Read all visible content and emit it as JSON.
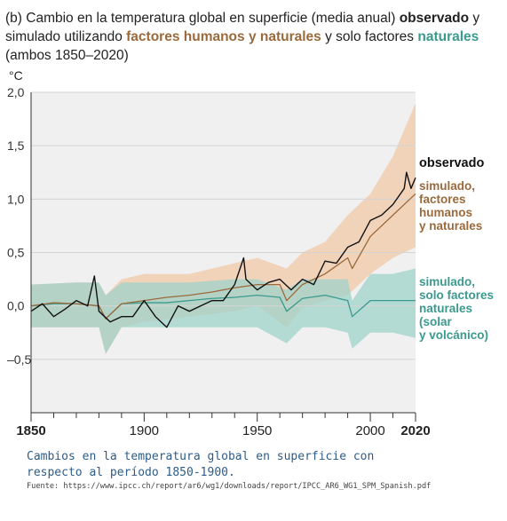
{
  "title": {
    "prefix": "(b) Cambio en la temperatura global en superficie (media anual) ",
    "observed": "observado",
    "middle1": " y simulado utilizando ",
    "human": "factores humanos y naturales",
    "middle2": "  y solo factores ",
    "natural": "naturales",
    "suffix": " (ambos 1850–2020)"
  },
  "unit": "°C",
  "labels": {
    "observed": "observado",
    "human": "simulado,\nfactores\nhumanos\ny naturales",
    "natural": "simulado,\nsolo factores\nnaturales\n(solar\ny volcánico)"
  },
  "caption": "Cambios en la temperatura global en superficie con respecto al período 1850-1900.",
  "source": "Fuente: https://www.ipcc.ch/report/ar6/wg1/downloads/report/IPCC_AR6_WG1_SPM_Spanish.pdf",
  "colors": {
    "observed": "#111111",
    "human": "#9a6a3c",
    "human_band": "#f2c9a8",
    "natural": "#3b9a8e",
    "natural_band": "#9fd3c9",
    "plot_bg": "#f0f0f0"
  },
  "chart_data": {
    "type": "line",
    "xlim": [
      1850,
      2020
    ],
    "ylim": [
      -1.0,
      2.0
    ],
    "x_ticks": [
      1850,
      1900,
      1950,
      2000,
      2020
    ],
    "x_tick_labels": [
      "1850",
      "1900",
      "1950",
      "2000",
      "2020"
    ],
    "y_ticks": [
      2.0,
      1.5,
      1.0,
      0.5,
      0.0,
      -0.5
    ],
    "y_tick_labels": [
      "2,0",
      "1,5",
      "1,0",
      "0,5",
      "0,0",
      "–0,5"
    ],
    "series": [
      {
        "name": "observado",
        "type": "line",
        "x": [
          1850,
          1855,
          1860,
          1865,
          1870,
          1875,
          1878,
          1880,
          1885,
          1890,
          1895,
          1900,
          1905,
          1910,
          1915,
          1920,
          1925,
          1930,
          1935,
          1940,
          1944,
          1945,
          1950,
          1955,
          1960,
          1965,
          1970,
          1975,
          1980,
          1985,
          1990,
          1995,
          2000,
          2005,
          2010,
          2015,
          2016,
          2018,
          2020
        ],
        "y": [
          -0.05,
          0.02,
          -0.1,
          -0.03,
          0.05,
          0.0,
          0.28,
          -0.05,
          -0.15,
          -0.1,
          -0.1,
          0.05,
          -0.1,
          -0.2,
          0.0,
          -0.05,
          0.0,
          0.05,
          0.05,
          0.2,
          0.45,
          0.25,
          0.15,
          0.22,
          0.25,
          0.15,
          0.25,
          0.2,
          0.42,
          0.4,
          0.55,
          0.6,
          0.8,
          0.85,
          0.95,
          1.1,
          1.25,
          1.1,
          1.2
        ]
      },
      {
        "name": "simulado, factores humanos y naturales",
        "type": "line",
        "x": [
          1850,
          1860,
          1870,
          1880,
          1883,
          1890,
          1900,
          1910,
          1920,
          1930,
          1940,
          1950,
          1960,
          1963,
          1970,
          1980,
          1990,
          1992,
          2000,
          2010,
          2020
        ],
        "y": [
          0.0,
          0.03,
          0.02,
          0.0,
          -0.12,
          0.02,
          0.05,
          0.08,
          0.1,
          0.13,
          0.17,
          0.2,
          0.2,
          0.05,
          0.2,
          0.3,
          0.45,
          0.35,
          0.65,
          0.85,
          1.05
        ]
      },
      {
        "name": "simulado, solo factores naturales",
        "type": "line",
        "x": [
          1850,
          1860,
          1870,
          1880,
          1883,
          1890,
          1900,
          1910,
          1920,
          1930,
          1940,
          1950,
          1960,
          1963,
          1970,
          1980,
          1990,
          1992,
          2000,
          2010,
          2020
        ],
        "y": [
          0.0,
          0.02,
          0.02,
          0.0,
          -0.12,
          0.02,
          0.03,
          0.03,
          0.05,
          0.07,
          0.08,
          0.1,
          0.08,
          -0.05,
          0.07,
          0.1,
          0.05,
          -0.1,
          0.05,
          0.05,
          0.05
        ]
      }
    ],
    "bands": [
      {
        "name": "simulado, factores humanos y naturales (rango)",
        "x": [
          1850,
          1870,
          1880,
          1883,
          1890,
          1900,
          1920,
          1940,
          1950,
          1963,
          1970,
          1980,
          1990,
          2000,
          2010,
          2020
        ],
        "low": [
          -0.2,
          -0.2,
          -0.2,
          -0.45,
          -0.2,
          -0.15,
          -0.1,
          -0.05,
          0.0,
          -0.2,
          -0.02,
          0.05,
          0.1,
          0.3,
          0.45,
          0.55
        ],
        "high": [
          0.2,
          0.22,
          0.22,
          0.1,
          0.25,
          0.3,
          0.3,
          0.4,
          0.45,
          0.35,
          0.5,
          0.6,
          0.85,
          1.05,
          1.4,
          1.9
        ]
      },
      {
        "name": "simulado, solo factores naturales (rango)",
        "x": [
          1850,
          1870,
          1880,
          1883,
          1890,
          1900,
          1920,
          1940,
          1950,
          1963,
          1970,
          1980,
          1990,
          1992,
          2000,
          2010,
          2020
        ],
        "low": [
          -0.2,
          -0.2,
          -0.2,
          -0.45,
          -0.2,
          -0.2,
          -0.2,
          -0.2,
          -0.2,
          -0.35,
          -0.2,
          -0.2,
          -0.25,
          -0.4,
          -0.25,
          -0.25,
          -0.3
        ],
        "high": [
          0.2,
          0.22,
          0.22,
          0.1,
          0.22,
          0.22,
          0.22,
          0.25,
          0.25,
          0.15,
          0.25,
          0.25,
          0.25,
          0.05,
          0.3,
          0.3,
          0.35
        ]
      }
    ]
  }
}
